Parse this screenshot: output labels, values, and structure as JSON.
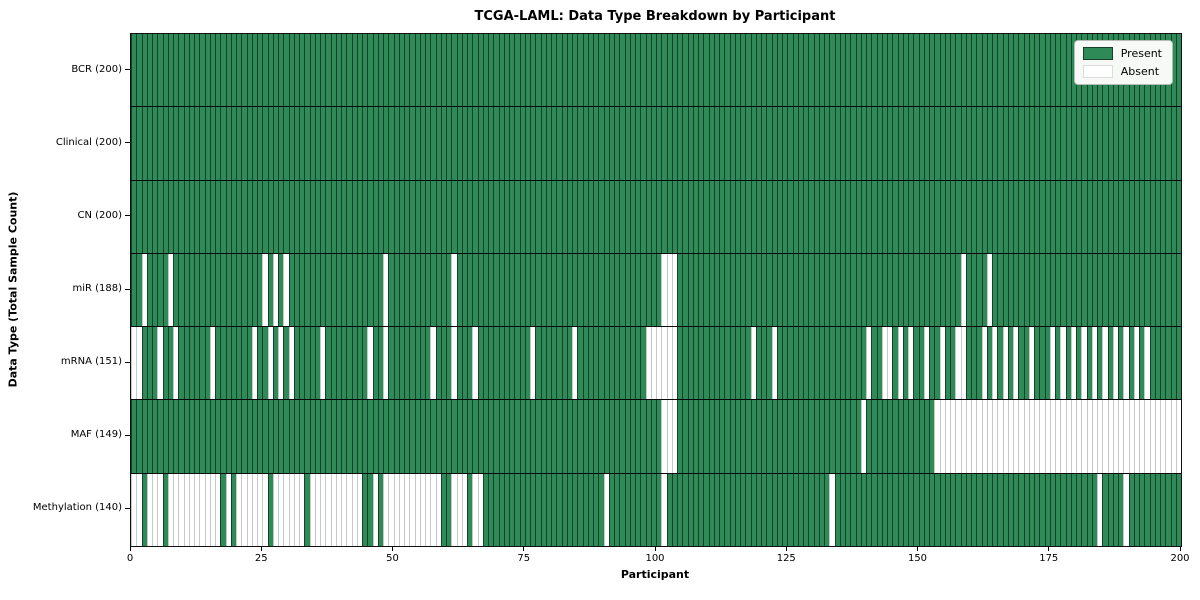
{
  "chart_data": {
    "type": "heatmap",
    "title": "TCGA-LAML: Data Type Breakdown by Participant",
    "xlabel": "Participant",
    "ylabel": "Data Type (Total Sample Count)",
    "x_range": [
      0,
      200
    ],
    "x_ticks": [
      0,
      25,
      50,
      75,
      100,
      125,
      150,
      175,
      200
    ],
    "n_participants": 200,
    "grid": false,
    "legend_position": "upper right",
    "legend": {
      "present": "Present",
      "absent": "Absent"
    },
    "colors": {
      "present_fill": "#2e8b57",
      "present_edge": "#16402a",
      "absent_fill": "#ffffff",
      "absent_edge": "#c8c8c8",
      "row_separator": "#0a0a0a"
    },
    "rows": [
      {
        "label": "BCR (200)",
        "data_type": "BCR",
        "present_count": 200,
        "absent_participants": []
      },
      {
        "label": "Clinical (200)",
        "data_type": "Clinical",
        "present_count": 200,
        "absent_participants": []
      },
      {
        "label": "CN (200)",
        "data_type": "CN",
        "present_count": 200,
        "absent_participants": []
      },
      {
        "label": "miR (188)",
        "data_type": "miR",
        "present_count": 188,
        "absent_participants": [
          2,
          7,
          25,
          27,
          29,
          48,
          61,
          101,
          102,
          103,
          158,
          163
        ]
      },
      {
        "label": "mRNA (151)",
        "data_type": "mRNA",
        "present_count": 151,
        "absent_participants": [
          0,
          1,
          5,
          8,
          15,
          23,
          26,
          28,
          30,
          36,
          45,
          48,
          57,
          61,
          65,
          76,
          84,
          98,
          99,
          100,
          101,
          102,
          103,
          118,
          122,
          140,
          143,
          144,
          146,
          148,
          151,
          154,
          157,
          158,
          162,
          164,
          166,
          168,
          171,
          175,
          177,
          179,
          181,
          183,
          185,
          187,
          189,
          191,
          193
        ]
      },
      {
        "label": "MAF (149)",
        "data_type": "MAF",
        "present_count": 149,
        "absent_participants": [
          101,
          102,
          103,
          139,
          153,
          154,
          155,
          156,
          157,
          158,
          159,
          160,
          161,
          162,
          163,
          164,
          165,
          166,
          167,
          168,
          169,
          170,
          171,
          172,
          173,
          174,
          175,
          176,
          177,
          178,
          179,
          180,
          181,
          182,
          183,
          184,
          185,
          186,
          187,
          188,
          189,
          190,
          191,
          192,
          193,
          194,
          195,
          196,
          197,
          198,
          199
        ]
      },
      {
        "label": "Methylation (140)",
        "data_type": "Methylation",
        "present_count": 140,
        "absent_participants": [
          0,
          1,
          3,
          4,
          5,
          7,
          8,
          9,
          10,
          11,
          12,
          13,
          14,
          15,
          16,
          18,
          20,
          21,
          22,
          23,
          24,
          25,
          27,
          28,
          29,
          30,
          31,
          32,
          34,
          35,
          36,
          37,
          38,
          39,
          40,
          41,
          42,
          43,
          46,
          48,
          49,
          50,
          51,
          52,
          53,
          54,
          55,
          56,
          57,
          58,
          61,
          62,
          63,
          65,
          66,
          90,
          101,
          133,
          184,
          189
        ]
      }
    ]
  }
}
